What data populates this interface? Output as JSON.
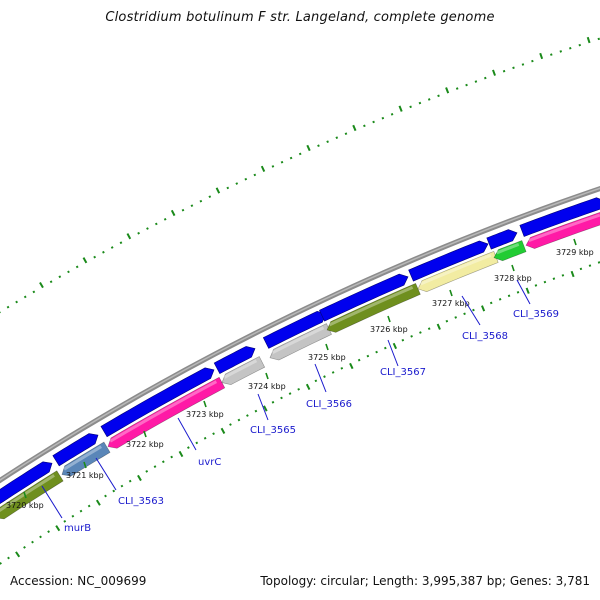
{
  "title": "Clostridium botulinum F str. Langeland, complete genome",
  "footer": {
    "accession": "Accession: NC_009699",
    "summary": "Topology: circular; Length: 3,995,387 bp; Genes: 3,781"
  },
  "colors": {
    "backbone": "#8c8c8c",
    "forward_cds": "#0000ee",
    "ticks": "#1a8a1a",
    "gene_label": "#1a1acd"
  },
  "coordinate_labels": [
    "3720 kbp",
    "3721 kbp",
    "3722 kbp",
    "3723 kbp",
    "3724 kbp",
    "3725 kbp",
    "3726 kbp",
    "3727 kbp",
    "3728 kbp",
    "3729 kbp"
  ],
  "gene_labels": [
    "murB",
    "CLI_3563",
    "uvrC",
    "CLI_3565",
    "CLI_3566",
    "CLI_3567",
    "CLI_3568",
    "CLI_3569"
  ]
}
